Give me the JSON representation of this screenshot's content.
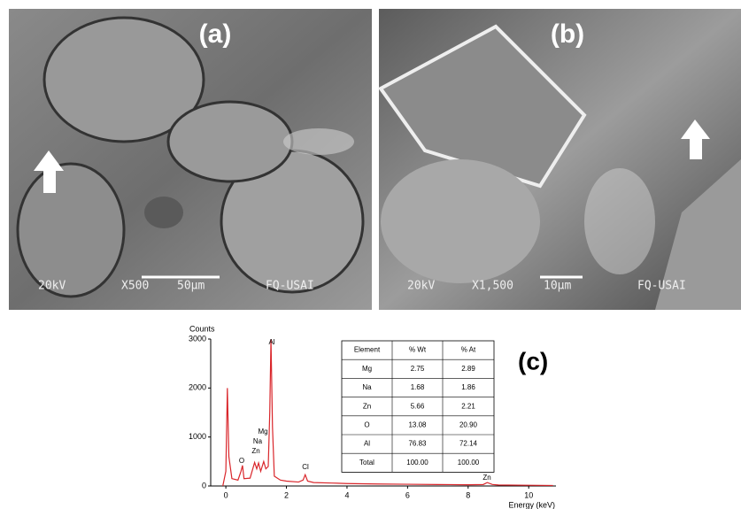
{
  "chart_data": {
    "type": "line",
    "y_label": "Counts",
    "x_label": "Energy (keV)",
    "x": [
      -0.1,
      0,
      0.05,
      0.1,
      0.2,
      0.4,
      0.5,
      0.55,
      0.6,
      0.8,
      0.95,
      1.02,
      1.08,
      1.15,
      1.25,
      1.32,
      1.4,
      1.45,
      1.49,
      1.54,
      1.6,
      1.8,
      2.0,
      2.4,
      2.55,
      2.62,
      2.7,
      2.9,
      3.5,
      4,
      5,
      6,
      7,
      8,
      8.5,
      8.63,
      8.8,
      9,
      10,
      10.8
    ],
    "series": [
      {
        "color": "#d9262b",
        "values": [
          0,
          300,
          2000,
          600,
          150,
          120,
          300,
          420,
          150,
          160,
          480,
          350,
          470,
          300,
          500,
          350,
          400,
          1500,
          3000,
          1200,
          200,
          120,
          100,
          80,
          120,
          230,
          100,
          70,
          60,
          50,
          40,
          35,
          30,
          25,
          30,
          70,
          30,
          20,
          15,
          10
        ]
      }
    ],
    "annotations": [
      "O",
      "Zn",
      "Na",
      "Mg",
      "Al",
      "Cl",
      "Zn"
    ],
    "xlim": [
      -0.5,
      10.9
    ],
    "ylim": [
      0,
      3000
    ],
    "xticks": [
      0,
      2,
      4,
      6,
      8,
      10
    ],
    "yticks": [
      0,
      1000,
      2000,
      3000
    ]
  },
  "panels": [
    {
      "label": "(a)",
      "footer": [
        "20kV",
        "X500",
        "50µm",
        "FQ-USAI"
      ]
    },
    {
      "label": "(b)",
      "footer": [
        "20kV",
        "X1,500",
        "10µm",
        "FQ-USAI"
      ]
    }
  ],
  "table": {
    "label": "(c)",
    "header": [
      "Element",
      "% Wt",
      "% At"
    ],
    "rows": [
      [
        "Mg",
        "2.75",
        "2.89"
      ],
      [
        "Na",
        "1.68",
        "1.86"
      ],
      [
        "Zn",
        "5.66",
        "2.21"
      ],
      [
        "O",
        "13.08",
        "20.90"
      ],
      [
        "Al",
        "76.83",
        "72.14"
      ],
      [
        "Total",
        "100.00",
        "100.00"
      ]
    ]
  }
}
